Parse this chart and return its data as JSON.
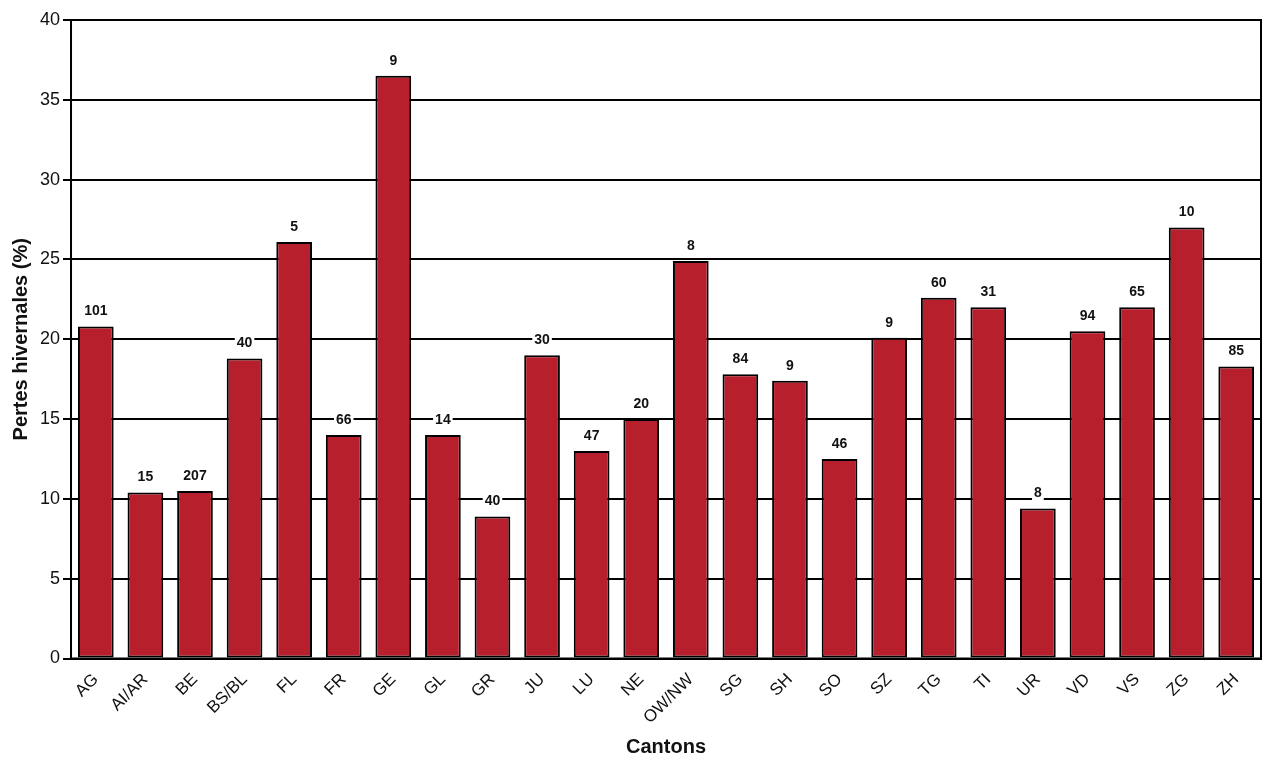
{
  "chart_data": {
    "type": "bar",
    "xlabel": "Cantons",
    "ylabel": "Pertes hivernales (%)",
    "categories": [
      "AG",
      "AI/AR",
      "BE",
      "BS/BL",
      "FL",
      "FR",
      "GE",
      "GL",
      "GR",
      "JU",
      "LU",
      "NE",
      "OW/NW",
      "SG",
      "SH",
      "SO",
      "SZ",
      "TG",
      "TI",
      "UR",
      "VD",
      "VS",
      "ZG",
      "ZH"
    ],
    "values": [
      20.8,
      10.4,
      10.5,
      18.8,
      26.1,
      14,
      36.5,
      14,
      8.9,
      19,
      13,
      15,
      24.9,
      17.8,
      17.4,
      12.5,
      20.1,
      22.6,
      22,
      9.4,
      20.5,
      22,
      27,
      18.3
    ],
    "annotations": [
      {
        "text": "101",
        "x": "AG",
        "y": 20.8
      },
      {
        "text": "15",
        "x": "AI/AR",
        "y": 10.4
      },
      {
        "text": "207",
        "x": "BE",
        "y": 10.5
      },
      {
        "text": "40",
        "x": "BS/BL",
        "y": 18.8
      },
      {
        "text": "5",
        "x": "FL",
        "y": 26.1
      },
      {
        "text": "66",
        "x": "FR",
        "y": 14
      },
      {
        "text": "9",
        "x": "GE",
        "y": 36.5
      },
      {
        "text": "14",
        "x": "GL",
        "y": 14
      },
      {
        "text": "40",
        "x": "GR",
        "y": 8.9
      },
      {
        "text": "30",
        "x": "JU",
        "y": 19
      },
      {
        "text": "47",
        "x": "LU",
        "y": 13
      },
      {
        "text": "20",
        "x": "NE",
        "y": 15
      },
      {
        "text": "8",
        "x": "OW/NW",
        "y": 24.9
      },
      {
        "text": "84",
        "x": "SG",
        "y": 17.8
      },
      {
        "text": "9",
        "x": "SH",
        "y": 17.4
      },
      {
        "text": "46",
        "x": "SO",
        "y": 12.5
      },
      {
        "text": "9",
        "x": "SZ",
        "y": 20.1
      },
      {
        "text": "60",
        "x": "TG",
        "y": 22.6
      },
      {
        "text": "31",
        "x": "TI",
        "y": 22
      },
      {
        "text": "8",
        "x": "UR",
        "y": 9.4
      },
      {
        "text": "94",
        "x": "VD",
        "y": 20.5
      },
      {
        "text": "65",
        "x": "VS",
        "y": 22
      },
      {
        "text": "10",
        "x": "ZG",
        "y": 27
      },
      {
        "text": "85",
        "x": "ZH",
        "y": 18.3
      }
    ],
    "color": "#b81f2c",
    "ylim": [
      0,
      40
    ],
    "yticks": [
      0,
      5,
      10,
      15,
      20,
      25,
      30,
      35,
      40
    ],
    "grid": "y",
    "legend": false
  }
}
